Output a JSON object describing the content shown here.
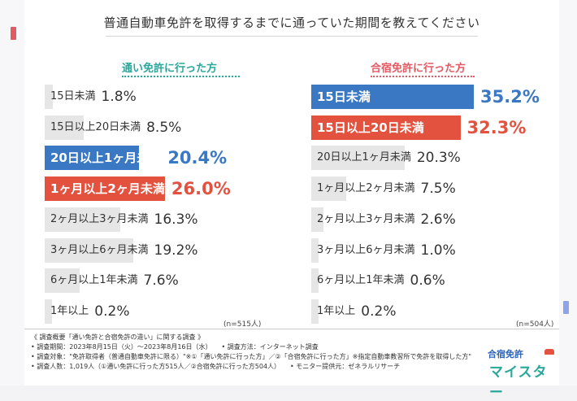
{
  "title": "普通自動車免許を取得するまでに通っていた期間を教えてください",
  "chart_data": [
    {
      "type": "bar",
      "orientation": "horizontal",
      "title": "通い免許に行った方",
      "sample_size": "(n=515人)",
      "categories": [
        "15日未満",
        "15日以上20日未満",
        "20日以上1ヶ月未満",
        "1ヶ月以上2ヶ月未満",
        "2ヶ月以上3ヶ月未満",
        "3ヶ月以上6ヶ月未満",
        "6ヶ月以上1年未満",
        "1年以上"
      ],
      "values": [
        1.8,
        8.5,
        20.4,
        26.0,
        16.3,
        19.2,
        7.6,
        0.2
      ],
      "labels": [
        "1.8%",
        "8.5%",
        "20.4%",
        "26.0%",
        "16.3%",
        "19.2%",
        "7.6%",
        "0.2%"
      ],
      "highlight": [
        "none",
        "none",
        "blue",
        "red",
        "none",
        "none",
        "none",
        "none"
      ],
      "xlim": [
        0,
        35.2
      ]
    },
    {
      "type": "bar",
      "orientation": "horizontal",
      "title": "合宿免許に行った方",
      "sample_size": "(n=504人)",
      "categories": [
        "15日未満",
        "15日以上20日未満",
        "20日以上1ヶ月未満",
        "1ヶ月以上2ヶ月未満",
        "2ヶ月以上3ヶ月未満",
        "3ヶ月以上6ヶ月未満",
        "6ヶ月以上1年未満",
        "1年以上"
      ],
      "values": [
        35.2,
        32.3,
        20.3,
        7.5,
        2.6,
        1.0,
        0.6,
        0.2
      ],
      "labels": [
        "35.2%",
        "32.3%",
        "20.3%",
        "7.5%",
        "2.6%",
        "1.0%",
        "0.6%",
        "0.2%"
      ],
      "highlight": [
        "blue",
        "red",
        "none",
        "none",
        "none",
        "none",
        "none",
        "none"
      ],
      "xlim": [
        0,
        35.2
      ]
    }
  ],
  "footer": {
    "line1": "《 調査概要「通い免許と合宿免許の違い」に関する調査 》",
    "line2": "• 調査期間：2023年8月15日（火）～2023年8月16日（水）　　• 調査方法：インターネット調査",
    "line3": "• 調査対象：\"免許取得者（普通自動車免許に限る）\"※①「通い免許に行った方」／②「合宿免許に行った方」※指定自動車教習所で免許を取得した方\"",
    "line4": "• 調査人数：1,019人（①通い免許に行った方515人／②合宿免許に行った方504人）　　• モニター提供元：ゼネラルリサーチ"
  },
  "logo": {
    "top": "合宿免許",
    "main": "マイスター"
  },
  "colors": {
    "teal": "#2aa79b",
    "red": "#e3523f",
    "blue": "#3a78c4",
    "gray_bar": "#e6e6e6"
  }
}
